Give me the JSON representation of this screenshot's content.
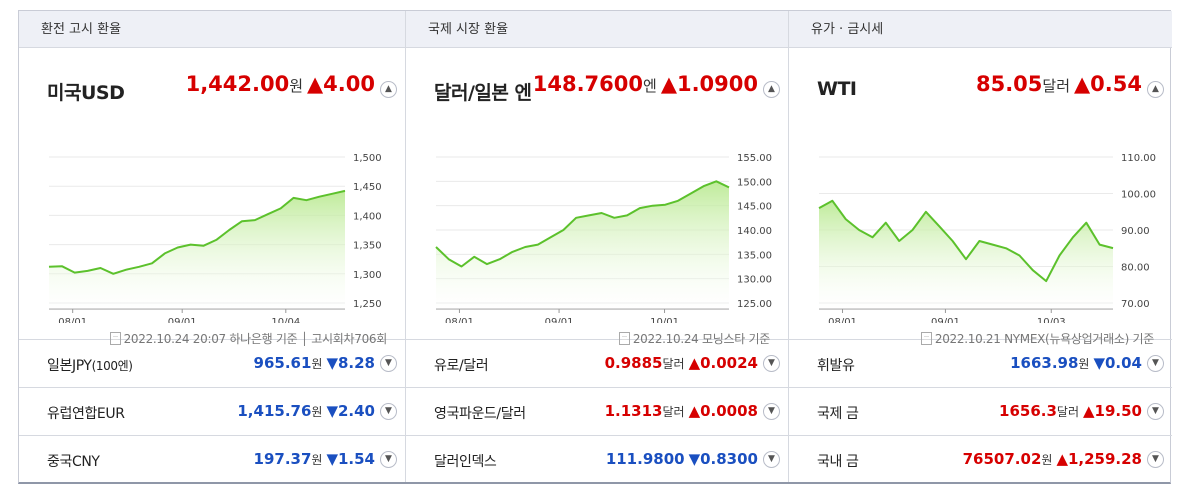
{
  "columns": [
    {
      "header": "환전 고시 환율",
      "currency": "미국USD",
      "value": "1,442.00",
      "unit": "원",
      "change": "▲4.00",
      "source": "2022.10.24 20:07 하나은행 기준 │ 고시회차706회",
      "toggle_icon": "chevron-up-icon",
      "chart_data": {
        "type": "area",
        "color": "#5cc12c",
        "yticks": [
          "1,500",
          "1,450",
          "1,400",
          "1,350",
          "1,300",
          "1,250"
        ],
        "ylim": [
          1250,
          1500
        ],
        "xticks": [
          "08/01",
          "09/01",
          "10/04"
        ],
        "x": [
          "07/25",
          "07/29",
          "08/02",
          "08/06",
          "08/10",
          "08/14",
          "08/18",
          "08/22",
          "08/26",
          "08/30",
          "09/03",
          "09/07",
          "09/11",
          "09/15",
          "09/19",
          "09/23",
          "09/27",
          "10/01",
          "10/05",
          "10/09",
          "10/13",
          "10/17",
          "10/21",
          "10/24"
        ],
        "values": [
          1312,
          1313,
          1302,
          1305,
          1310,
          1300,
          1307,
          1312,
          1318,
          1335,
          1345,
          1350,
          1348,
          1358,
          1375,
          1390,
          1392,
          1402,
          1412,
          1430,
          1426,
          1432,
          1437,
          1442
        ]
      },
      "rows": [
        {
          "name": "일본JPY",
          "name_sm": "(100엔)",
          "value": "965.61",
          "unit": "원",
          "change": "▼8.28",
          "dir": "down"
        },
        {
          "name": "유럽연합EUR",
          "name_sm": "",
          "value": "1,415.76",
          "unit": "원",
          "change": "▼2.40",
          "dir": "down"
        },
        {
          "name": "중국CNY",
          "name_sm": "",
          "value": "197.37",
          "unit": "원",
          "change": "▼1.54",
          "dir": "down"
        }
      ]
    },
    {
      "header": "국제 시장 환율",
      "currency": "달러/일본 엔",
      "value": "148.7600",
      "unit": "엔",
      "change": "▲1.0900",
      "source": "2022.10.24 모닝스타 기준",
      "toggle_icon": "chevron-up-icon",
      "chart_data": {
        "type": "area",
        "color": "#5cc12c",
        "yticks": [
          "155.00",
          "150.00",
          "145.00",
          "140.00",
          "135.00",
          "130.00",
          "125.00"
        ],
        "ylim": [
          125,
          155
        ],
        "xticks": [
          "08/01",
          "09/01",
          "10/01"
        ],
        "x": [
          "07/25",
          "07/29",
          "08/02",
          "08/06",
          "08/10",
          "08/14",
          "08/18",
          "08/22",
          "08/26",
          "08/30",
          "09/03",
          "09/07",
          "09/11",
          "09/15",
          "09/19",
          "09/23",
          "09/27",
          "10/01",
          "10/05",
          "10/09",
          "10/13",
          "10/17",
          "10/21",
          "10/24"
        ],
        "values": [
          136.5,
          134,
          132.5,
          134.5,
          133,
          134,
          135.5,
          136.5,
          137,
          138.5,
          140,
          142.5,
          143,
          143.5,
          142.5,
          143,
          144.5,
          145,
          145.2,
          146,
          147.5,
          149,
          150,
          148.76
        ]
      },
      "rows": [
        {
          "name": "유로/달러",
          "name_sm": "",
          "value": "0.9885",
          "unit": "달러",
          "change": "▲0.0024",
          "dir": "up"
        },
        {
          "name": "영국파운드/달러",
          "name_sm": "",
          "value": "1.1313",
          "unit": "달러",
          "change": "▲0.0008",
          "dir": "up"
        },
        {
          "name": "달러인덱스",
          "name_sm": "",
          "value": "111.9800",
          "unit": "",
          "change": "▼0.8300",
          "dir": "down"
        }
      ]
    },
    {
      "header": "유가 · 금시세",
      "currency": "WTI",
      "value": "85.05",
      "unit": "달러",
      "change": "▲0.54",
      "source": "2022.10.21 NYMEX(뉴욕상업거래소) 기준",
      "toggle_icon": "chevron-up-icon",
      "chart_data": {
        "type": "area",
        "color": "#5cc12c",
        "yticks": [
          "110.00",
          "100.00",
          "90.00",
          "80.00",
          "70.00"
        ],
        "ylim": [
          70,
          110
        ],
        "xticks": [
          "08/01",
          "09/01",
          "10/03"
        ],
        "x": [
          "07/25",
          "07/29",
          "08/02",
          "08/06",
          "08/10",
          "08/14",
          "08/18",
          "08/22",
          "08/26",
          "08/30",
          "09/03",
          "09/07",
          "09/11",
          "09/15",
          "09/19",
          "09/23",
          "09/27",
          "10/01",
          "10/05",
          "10/09",
          "10/13",
          "10/17",
          "10/21"
        ],
        "values": [
          96,
          98,
          93,
          90,
          88,
          92,
          87,
          90,
          95,
          91,
          87,
          82,
          87,
          86,
          85,
          83,
          79,
          76,
          83,
          88,
          92,
          86,
          85.05
        ]
      },
      "rows": [
        {
          "name": "휘발유",
          "name_sm": "",
          "value": "1663.98",
          "unit": "원",
          "change": "▼0.04",
          "dir": "down"
        },
        {
          "name": "국제 금",
          "name_sm": "",
          "value": "1656.3",
          "unit": "달러",
          "change": "▲19.50",
          "dir": "up"
        },
        {
          "name": "국내 금",
          "name_sm": "",
          "value": "76507.02",
          "unit": "원",
          "change": "▲1,259.28",
          "dir": "up"
        }
      ]
    }
  ]
}
